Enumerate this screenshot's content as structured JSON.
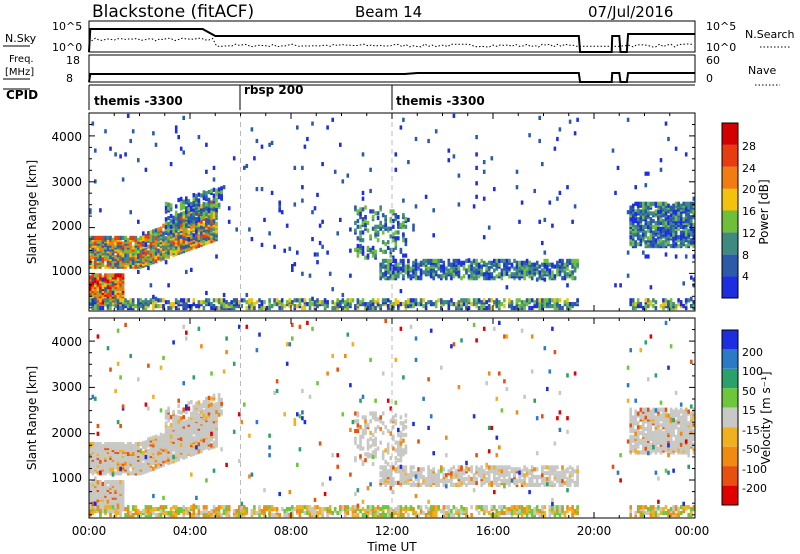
{
  "header": {
    "station": "Blackstone (fitACF)",
    "beam": "Beam 14",
    "date": "07/Jul/2016"
  },
  "nsky_panel": {
    "left_label": "N.Sky",
    "right_label": "N.Search",
    "left_ticks": [
      "10^5",
      "10^0"
    ],
    "right_ticks": [
      "10^5",
      "10^0"
    ]
  },
  "freq_panel": {
    "left_label_1": "Freq.",
    "left_label_2": "[MHz]",
    "right_label": "Nave",
    "left_ticks": [
      "18",
      "8"
    ],
    "right_ticks": [
      "60",
      "0"
    ]
  },
  "cpid": {
    "label": "CPID",
    "segments": [
      {
        "name": "themis -3300",
        "start_h": 0
      },
      {
        "name": "rbsp 200",
        "start_h": 6
      },
      {
        "name": "themis -3300",
        "start_h": 12
      }
    ]
  },
  "x_axis": {
    "label": "Time UT",
    "ticks": [
      "00:00",
      "04:00",
      "08:00",
      "12:00",
      "16:00",
      "20:00",
      "00:00"
    ]
  },
  "chart_data": [
    {
      "type": "heatmap",
      "name": "power",
      "ylabel": "Slant Range [km]",
      "xlim_hours": [
        0,
        24
      ],
      "ylim_km": [
        180,
        4500
      ],
      "yticks": [
        "1000",
        "2000",
        "3000",
        "4000"
      ],
      "colorbar_label": "Power [dB]",
      "colorbar_ticks": [
        "4",
        "8",
        "12",
        "16",
        "20",
        "24",
        "28"
      ],
      "colors": [
        "#1c2ee0",
        "#2a5aa8",
        "#3f8a7e",
        "#6fbf3a",
        "#f2c20c",
        "#f07c12",
        "#e83c10",
        "#d40000"
      ]
    },
    {
      "type": "heatmap",
      "name": "velocity",
      "ylabel": "Slant Range [km]",
      "xlim_hours": [
        0,
        24
      ],
      "ylim_km": [
        180,
        4500
      ],
      "yticks": [
        "1000",
        "2000",
        "3000",
        "4000"
      ],
      "colorbar_label": "Velocity [m s⁻¹]",
      "colorbar_ticks": [
        "200",
        "100",
        "50",
        "15",
        "-15",
        "-50",
        "-100",
        "-200"
      ],
      "colors": [
        "#1c2ee0",
        "#2a7ac8",
        "#2aa06a",
        "#6cc83a",
        "#c8c8c4",
        "#f0b020",
        "#f08a10",
        "#e85010",
        "#e00000"
      ]
    }
  ]
}
